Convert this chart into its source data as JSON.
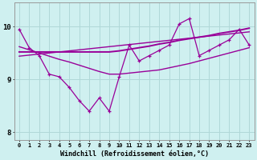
{
  "xlabel": "Windchill (Refroidissement éolien,°C)",
  "bg_color": "#cff0f0",
  "line_color": "#990099",
  "grid_color": "#b0d8d8",
  "x_data": [
    0,
    1,
    2,
    3,
    4,
    5,
    6,
    7,
    8,
    9,
    10,
    11,
    12,
    13,
    14,
    15,
    16,
    17,
    18,
    19,
    20,
    21,
    22,
    23
  ],
  "y_main": [
    9.95,
    9.6,
    9.45,
    9.1,
    9.05,
    8.85,
    8.6,
    8.4,
    8.65,
    8.4,
    9.05,
    9.65,
    9.35,
    9.45,
    9.55,
    9.65,
    10.05,
    10.15,
    9.45,
    9.55,
    9.65,
    9.75,
    9.95,
    9.65
  ],
  "y_trend_down": [
    9.62,
    9.56,
    9.5,
    9.44,
    9.38,
    9.33,
    9.27,
    9.21,
    9.15,
    9.1,
    9.1,
    9.12,
    9.14,
    9.16,
    9.18,
    9.22,
    9.26,
    9.3,
    9.35,
    9.4,
    9.45,
    9.5,
    9.55,
    9.6
  ],
  "y_trend_flat": [
    9.52,
    9.52,
    9.52,
    9.52,
    9.52,
    9.52,
    9.52,
    9.52,
    9.52,
    9.52,
    9.54,
    9.57,
    9.6,
    9.63,
    9.67,
    9.7,
    9.74,
    9.77,
    9.8,
    9.83,
    9.87,
    9.9,
    9.93,
    9.97
  ],
  "y_trend_up": [
    9.44,
    9.46,
    9.48,
    9.5,
    9.52,
    9.54,
    9.56,
    9.58,
    9.6,
    9.62,
    9.64,
    9.66,
    9.68,
    9.7,
    9.72,
    9.74,
    9.76,
    9.78,
    9.8,
    9.82,
    9.84,
    9.86,
    9.88,
    9.9
  ],
  "ylim": [
    7.85,
    10.45
  ],
  "yticks": [
    8,
    9,
    10
  ],
  "xlim": [
    -0.5,
    23.5
  ]
}
